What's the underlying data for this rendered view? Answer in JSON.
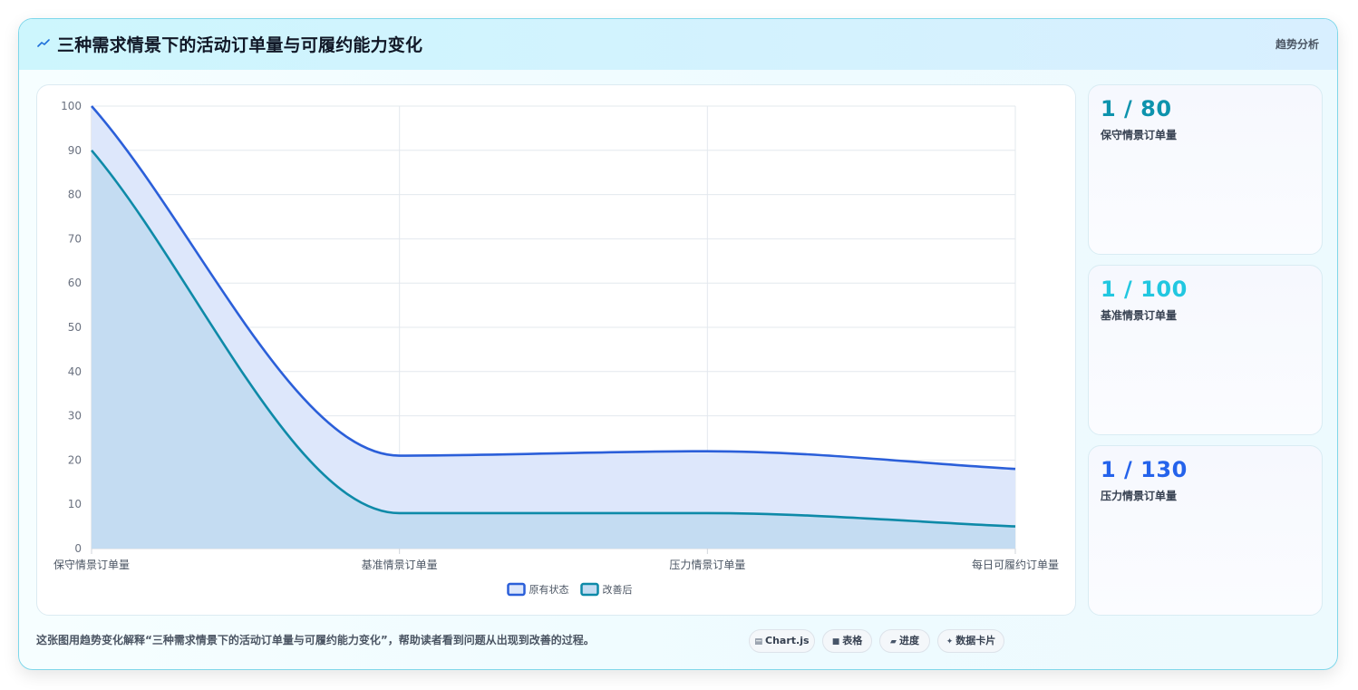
{
  "header": {
    "title": "三种需求情景下的活动订单量与可履约能力变化",
    "tag": "趋势分析"
  },
  "stats": [
    {
      "value": "1 / 80",
      "label": "保守情景订单量",
      "color": "#0e93ad"
    },
    {
      "value": "1 / 100",
      "label": "基准情景订单量",
      "color": "#22c7e0"
    },
    {
      "value": "1 / 130",
      "label": "压力情景订单量",
      "color": "#2563eb"
    }
  ],
  "caption": "这张图用趋势变化解释“三种需求情景下的活动订单量与可履约能力变化”，帮助读者看到问题从出现到改善的过程。",
  "pills": [
    {
      "icon": "▤",
      "label": "Chart.js"
    },
    {
      "icon": "■",
      "label": "表格"
    },
    {
      "icon": "▰",
      "label": "进度"
    },
    {
      "icon": "✦",
      "label": "数据卡片"
    }
  ],
  "chart_data": {
    "type": "area",
    "categories": [
      "保守情景订单量",
      "基准情景订单量",
      "压力情景订单量",
      "每日可履约订单量"
    ],
    "series": [
      {
        "name": "原有状态",
        "values": [
          100,
          21,
          22,
          18
        ],
        "color": "#2b5fd9",
        "fill": "#dde7fb"
      },
      {
        "name": "改善后",
        "values": [
          90,
          8,
          8,
          5
        ],
        "color": "#0e8aa8",
        "fill": "#c4dcf2"
      }
    ],
    "ylim": [
      0,
      100
    ],
    "yticks": [
      0,
      10,
      20,
      30,
      40,
      50,
      60,
      70,
      80,
      90,
      100
    ],
    "grid": true,
    "legend": "bottom"
  }
}
